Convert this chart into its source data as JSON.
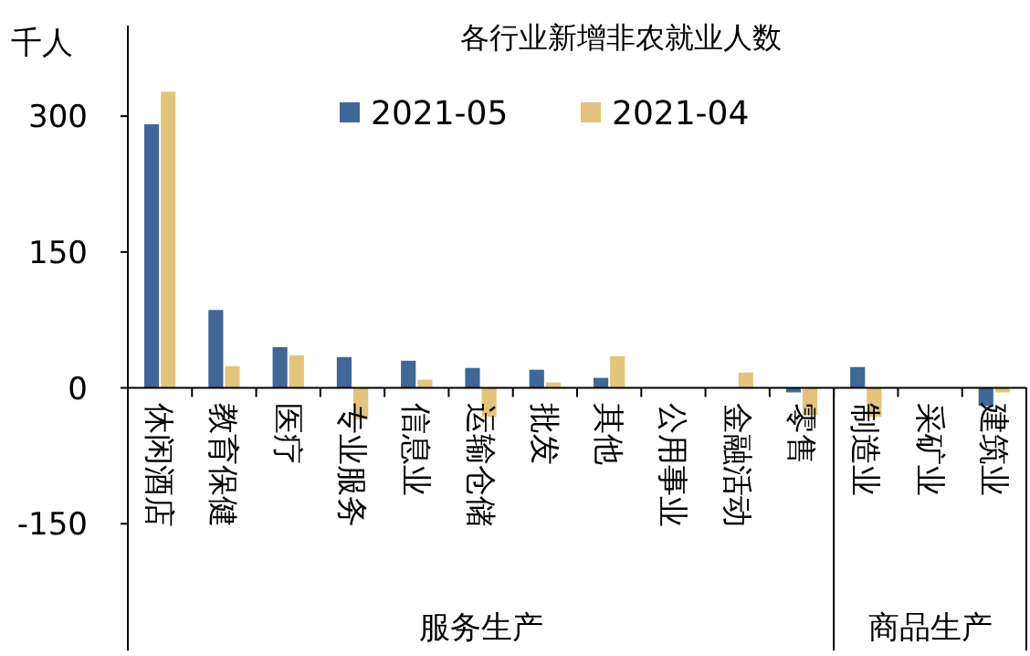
{
  "chart_data": {
    "type": "bar",
    "title": "各行业新增非农就业人数",
    "ylabel": "千人",
    "categories": [
      "休闲酒店",
      "教育保健",
      "医疗",
      "专业服务",
      "信息业",
      "运输仓储",
      "批发",
      "其他",
      "公用事业",
      "金融活动",
      "零售",
      "制造业",
      "采矿业",
      "建筑业"
    ],
    "series": [
      {
        "name": "2021-05",
        "color": "#3f6797",
        "values": [
          291,
          86,
          45,
          34,
          30,
          22,
          20,
          11,
          0,
          0,
          -5,
          23,
          0,
          -20
        ]
      },
      {
        "name": "2021-04",
        "color": "#e2c47c",
        "values": [
          327,
          24,
          36,
          -35,
          9,
          -32,
          6,
          35,
          0,
          17,
          -30,
          -32,
          0,
          -5
        ]
      }
    ],
    "ylim": [
      -290,
      400
    ],
    "yticks": [
      -150,
      0,
      150,
      300
    ],
    "legend": "top",
    "annotations": [
      "服务生产",
      "商品生产"
    ]
  }
}
